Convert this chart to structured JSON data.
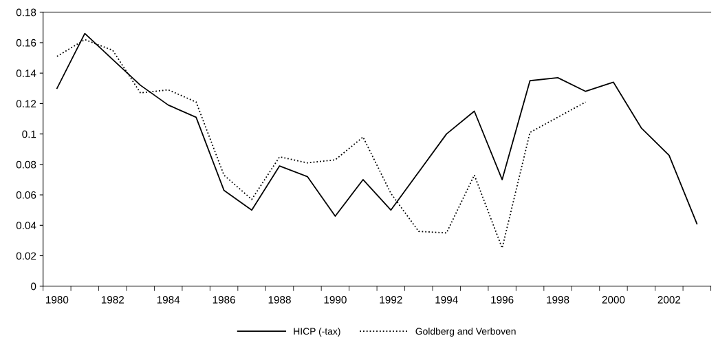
{
  "chart_data": {
    "type": "line",
    "categories": [
      "1980",
      null,
      "1982",
      null,
      "1984",
      null,
      "1986",
      null,
      "1988",
      null,
      "1990",
      null,
      "1992",
      null,
      "1994",
      null,
      "1996",
      null,
      "1998",
      null,
      "2000",
      null,
      "2002",
      null
    ],
    "series": [
      {
        "name": "HICP (-tax)",
        "color": "#000000",
        "line_style": "solid",
        "values": [
          0.13,
          0.166,
          0.149,
          0.132,
          0.119,
          0.111,
          0.063,
          0.05,
          0.079,
          0.072,
          0.046,
          0.07,
          0.05,
          0.075,
          0.1,
          0.115,
          0.07,
          0.135,
          0.137,
          0.128,
          0.134,
          0.104,
          0.086,
          0.041
        ]
      },
      {
        "name": "Goldberg and Verboven",
        "color": "#000000",
        "line_style": "dotted",
        "values": [
          0.151,
          0.162,
          0.155,
          0.127,
          0.129,
          0.121,
          0.073,
          0.057,
          0.085,
          0.081,
          0.083,
          0.098,
          0.061,
          0.036,
          0.035,
          0.073,
          0.025,
          0.101,
          0.111,
          0.121,
          null,
          null,
          null,
          null
        ]
      }
    ],
    "ylim": [
      0,
      0.18
    ],
    "yticks": [
      0,
      0.02,
      0.04,
      0.06,
      0.08,
      0.1,
      0.12,
      0.14,
      0.16,
      0.18
    ],
    "grid": false,
    "legend": "bottom"
  }
}
